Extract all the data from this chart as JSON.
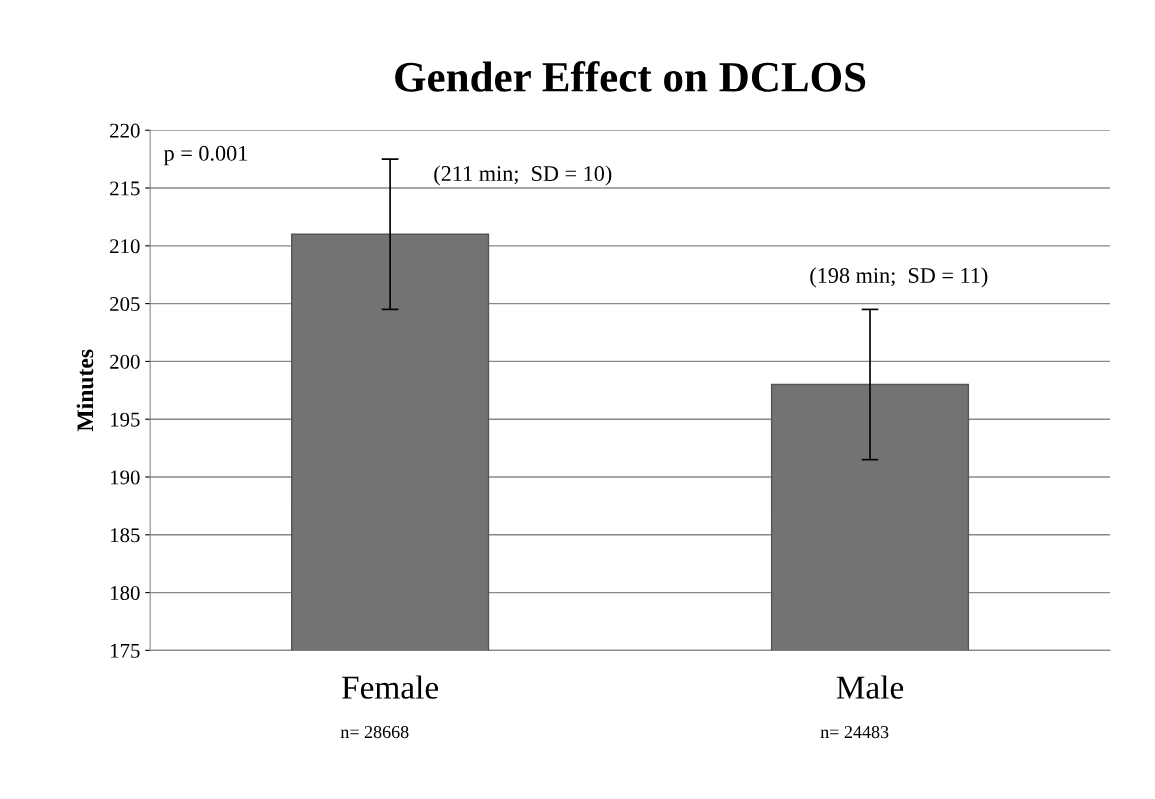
{
  "chart_data": {
    "type": "bar",
    "title": "Gender Effect on DCLOS",
    "ylabel": "Minutes",
    "categories": [
      "Female",
      "Male"
    ],
    "values": [
      211,
      198
    ],
    "errors": [
      6.5,
      6.5
    ],
    "color": "#737373",
    "ylim": [
      175,
      220
    ],
    "yticks": [
      175,
      180,
      185,
      190,
      195,
      200,
      205,
      210,
      215,
      220
    ],
    "grid": "y",
    "legend": false,
    "annotations": [
      "p = 0.001",
      "(211 min;  SD = 10)",
      "(198 min;  SD = 11)",
      "n= 28668",
      "n= 24483"
    ]
  }
}
